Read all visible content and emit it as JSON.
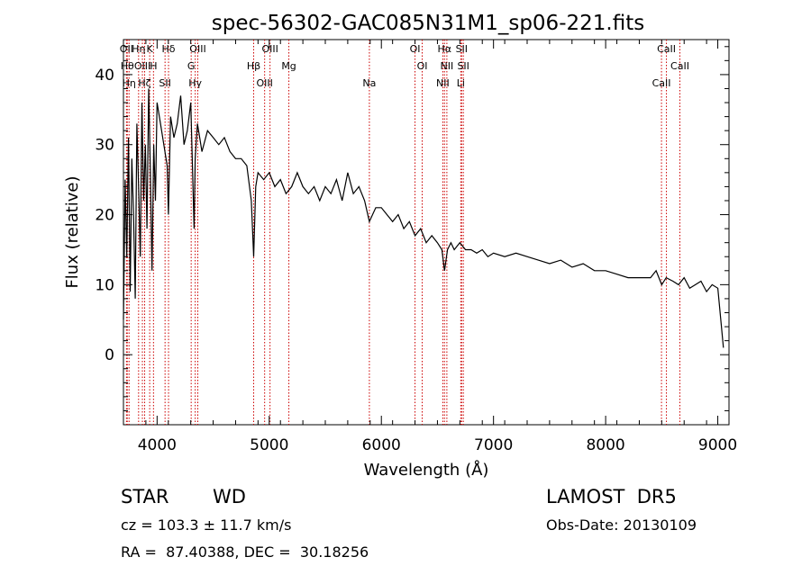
{
  "chart_data": {
    "type": "line",
    "title": "spec-56302-GAC085N31M1_sp06-221.fits",
    "xlabel": "Wavelength (Å)",
    "ylabel": "Flux (relative)",
    "xlim": [
      3700,
      9100
    ],
    "ylim": [
      -10,
      45
    ],
    "x_ticks": [
      4000,
      5000,
      6000,
      7000,
      8000,
      9000
    ],
    "y_ticks": [
      0,
      10,
      20,
      30,
      40
    ],
    "grid": false,
    "line_color": "#000000",
    "marker_color": "#cc0000",
    "series": [
      {
        "x": [
          3700,
          3715,
          3730,
          3745,
          3760,
          3775,
          3790,
          3805,
          3820,
          3835,
          3850,
          3865,
          3880,
          3895,
          3910,
          3925,
          3940,
          3955,
          3970,
          3985,
          4000,
          4030,
          4060,
          4090,
          4101,
          4120,
          4150,
          4180,
          4210,
          4240,
          4270,
          4300,
          4330,
          4340,
          4360,
          4380,
          4400,
          4450,
          4500,
          4550,
          4600,
          4650,
          4700,
          4750,
          4800,
          4840,
          4861,
          4880,
          4900,
          4950,
          5000,
          5050,
          5100,
          5150,
          5200,
          5250,
          5300,
          5350,
          5400,
          5450,
          5500,
          5550,
          5600,
          5650,
          5700,
          5750,
          5800,
          5850,
          5893,
          5950,
          6000,
          6050,
          6100,
          6150,
          6200,
          6250,
          6300,
          6350,
          6400,
          6450,
          6500,
          6540,
          6563,
          6590,
          6620,
          6650,
          6700,
          6750,
          6800,
          6850,
          6900,
          6950,
          7000,
          7100,
          7200,
          7300,
          7400,
          7500,
          7600,
          7700,
          7800,
          7900,
          8000,
          8100,
          8200,
          8300,
          8400,
          8450,
          8500,
          8540,
          8600,
          8650,
          8700,
          8750,
          8800,
          8850,
          8900,
          8950,
          9000,
          9050
        ],
        "y": [
          5,
          25,
          14,
          31,
          9,
          28,
          20,
          8,
          33,
          24,
          14,
          36,
          22,
          30,
          18,
          38,
          26,
          12,
          30,
          22,
          36,
          33,
          30,
          27,
          20,
          34,
          31,
          33,
          37,
          30,
          32,
          36,
          18,
          28,
          33,
          31,
          29,
          32,
          31,
          30,
          31,
          29,
          28,
          28,
          27,
          22,
          14,
          24,
          26,
          25,
          26,
          24,
          25,
          23,
          24,
          26,
          24,
          23,
          24,
          22,
          24,
          23,
          25,
          22,
          26,
          23,
          24,
          22,
          19,
          21,
          21,
          20,
          19,
          20,
          18,
          19,
          17,
          18,
          16,
          17,
          16,
          15,
          12,
          15,
          16,
          15,
          16,
          15,
          15,
          14.5,
          15,
          14,
          14.5,
          14,
          14.5,
          14,
          13.5,
          13,
          13.5,
          12.5,
          13,
          12,
          12,
          11.5,
          11,
          11,
          11,
          12,
          10,
          11,
          10.5,
          10,
          11,
          9.5,
          10,
          10.5,
          9,
          10,
          9.5,
          1
        ]
      }
    ],
    "line_markers": [
      {
        "x": 3727,
        "label": "OII"
      },
      {
        "x": 3734,
        "label": "Hθ"
      },
      {
        "x": 3750,
        "label": "Hη"
      },
      {
        "x": 3835,
        "label": "Hη"
      },
      {
        "x": 3869,
        "label": "OIII"
      },
      {
        "x": 3889,
        "label": "Hζ"
      },
      {
        "x": 3934,
        "label": "K"
      },
      {
        "x": 3968,
        "label": "H"
      },
      {
        "x": 4071,
        "label": "SII"
      },
      {
        "x": 4102,
        "label": "Hδ"
      },
      {
        "x": 4304,
        "label": "G"
      },
      {
        "x": 4340,
        "label": "Hγ"
      },
      {
        "x": 4363,
        "label": "OIII"
      },
      {
        "x": 4861,
        "label": "Hβ"
      },
      {
        "x": 4959,
        "label": "OIII"
      },
      {
        "x": 5007,
        "label": "OIII"
      },
      {
        "x": 5175,
        "label": "Mg"
      },
      {
        "x": 5893,
        "label": "Na"
      },
      {
        "x": 6300,
        "label": "OI"
      },
      {
        "x": 6364,
        "label": "OI"
      },
      {
        "x": 6548,
        "label": "NII"
      },
      {
        "x": 6563,
        "label": "Hα"
      },
      {
        "x": 6584,
        "label": "NII"
      },
      {
        "x": 6708,
        "label": "Li"
      },
      {
        "x": 6716,
        "label": "SII"
      },
      {
        "x": 6731,
        "label": "SII"
      },
      {
        "x": 8498,
        "label": "CaII"
      },
      {
        "x": 8542,
        "label": "CaII"
      },
      {
        "x": 8662,
        "label": "CaII"
      }
    ]
  },
  "info": {
    "object_class": "STAR",
    "subclass": "WD",
    "survey": "LAMOST  DR5",
    "redshift": "cz = 103.3 ± 11.7 km/s",
    "obs_date": "Obs-Date: 20130109",
    "coordinates": "RA =  87.40388, DEC =  30.18256"
  }
}
